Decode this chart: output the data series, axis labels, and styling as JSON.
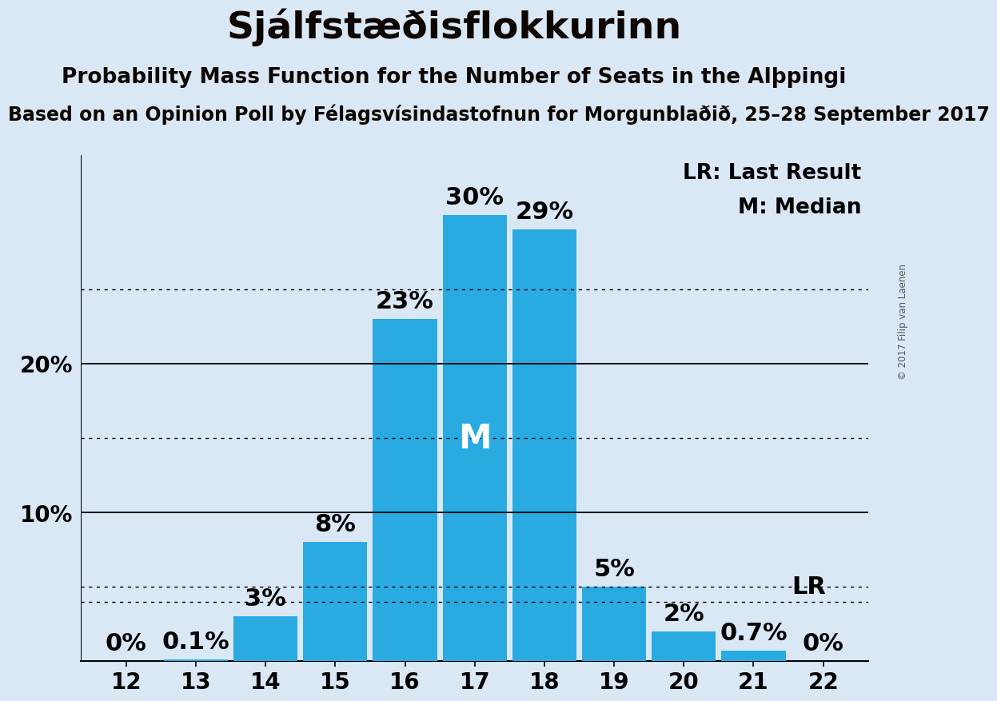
{
  "title": "Sjálfstæðisflokkurinn",
  "subtitle": "Probability Mass Function for the Number of Seats in the Alþpingi",
  "source_line": "Based on an Opinion Poll by Félagsvísindastofnun for Morgunblaðið, 25–28 September 2017",
  "copyright": "© 2017 Filip van Laenen",
  "seats": [
    12,
    13,
    14,
    15,
    16,
    17,
    18,
    19,
    20,
    21,
    22
  ],
  "probs": [
    0.0,
    0.1,
    3.0,
    8.0,
    23.0,
    30.0,
    29.0,
    5.0,
    2.0,
    0.7,
    0.0
  ],
  "labels": [
    "0%",
    "0.1%",
    "3%",
    "8%",
    "23%",
    "30%",
    "29%",
    "5%",
    "2%",
    "0.7%",
    "0%"
  ],
  "bar_color": "#29ABE2",
  "background_color": "#dae8f5",
  "solid_lines": [
    10,
    20
  ],
  "dotted_lines": [
    5,
    15,
    25
  ],
  "lr_value": 4.0,
  "median_seat": 17,
  "legend_lr": "LR: Last Result",
  "legend_m": "M: Median",
  "title_fontsize": 34,
  "subtitle_fontsize": 19,
  "source_fontsize": 17,
  "tick_fontsize": 20,
  "ytick_fontsize": 20,
  "annotation_fontsize": 22,
  "m_fontsize": 30,
  "legend_fontsize": 19,
  "ylim": [
    0,
    34
  ],
  "bar_width": 0.92
}
